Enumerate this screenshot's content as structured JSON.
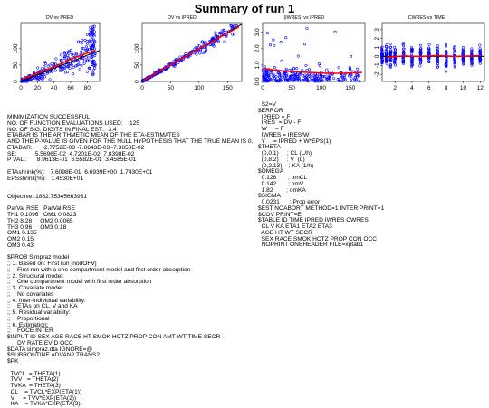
{
  "page_title": "Summary of run 1",
  "chart_data": [
    {
      "type": "scatter",
      "title": "DV vs PRED",
      "xlabel": "",
      "ylabel": "",
      "xlim": [
        0,
        95
      ],
      "ylim": [
        0,
        180
      ],
      "x_ticks": [
        "0",
        "20",
        "40",
        "60",
        "80"
      ],
      "y_ticks": [
        "0",
        "50",
        "100"
      ],
      "reference_line": "identity",
      "smooth_line": {
        "x": [
          2,
          15,
          30,
          45,
          60,
          75,
          90
        ],
        "y": [
          8,
          20,
          35,
          50,
          68,
          82,
          95
        ]
      },
      "points_color": "#0000ff",
      "smooth_color": "#ff0000",
      "x_dense": true
    },
    {
      "type": "scatter",
      "title": "DV vs IPRED",
      "xlabel": "",
      "ylabel": "",
      "xlim": [
        0,
        175
      ],
      "ylim": [
        0,
        180
      ],
      "x_ticks": [
        "0",
        "50",
        "100",
        "150"
      ],
      "y_ticks": [
        "0",
        "50",
        "100"
      ],
      "reference_line": "identity",
      "smooth_line": {
        "x": [
          2,
          30,
          60,
          90,
          120,
          150,
          170
        ],
        "y": [
          3,
          31,
          61,
          90,
          119,
          148,
          167
        ]
      },
      "points_color": "#0000ff",
      "smooth_color": "#ff0000",
      "x_dense": false
    },
    {
      "type": "scatter",
      "title": "|IWRES| vs IPRED",
      "xlabel": "",
      "ylabel": "",
      "xlim": [
        0,
        175
      ],
      "ylim": [
        0,
        3.6
      ],
      "x_ticks": [
        "0",
        "50",
        "100",
        "150"
      ],
      "y_ticks": [
        "0.0",
        "1.0",
        "2.0",
        "3.0"
      ],
      "reference_line": "none",
      "smooth_line": {
        "x": [
          2,
          20,
          50,
          80,
          110,
          140,
          170
        ],
        "y": [
          0.8,
          0.7,
          0.6,
          0.55,
          0.5,
          0.5,
          0.55
        ]
      },
      "points_color": "#0000ff",
      "smooth_color": "#ff0000",
      "x_dense": false
    },
    {
      "type": "scatter",
      "title": "CWRES vs TIME",
      "xlabel": "",
      "ylabel": "",
      "xlim": [
        0.5,
        12.5
      ],
      "ylim": [
        -2.8,
        3.8
      ],
      "x_ticks": [
        "2",
        "4",
        "6",
        "8",
        "10",
        "12"
      ],
      "y_ticks": [
        "-2",
        "-1",
        "0",
        "1",
        "2",
        "3"
      ],
      "reference_line": "zero",
      "smooth_line": {
        "x": [
          1,
          3,
          5,
          7,
          9,
          11,
          12
        ],
        "y": [
          -0.1,
          0.05,
          0.0,
          0.1,
          0.0,
          0.05,
          0.1
        ]
      },
      "points_color": "#0000ff",
      "smooth_color": "#ff0000",
      "x_time_columns": [
        0.5,
        1,
        1.5,
        2,
        3,
        4,
        5,
        6,
        7,
        8,
        9,
        10,
        11,
        12
      ]
    }
  ],
  "left_column": [
    "MINIMIZATION SUCCESSFUL",
    "NO. OF FUNCTION EVALUATIONS USED:    125",
    "NO. OF SIG. DIGITS IN FINAL EST.:  3.4",
    "ETABAR IS THE ARITHMETIC MEAN OF THE ETA-ESTIMATES",
    "AND THE P-VALUE IS GIVEN FOR THE NULL HYPOTHESIS THAT THE TRUE MEAN IS 0.",
    "ETABAR:      -2.7752E-03 -7.8643E-03 -7.3858E-02",
    "SE:           5.5696E-02  4.7201E-02  7.8398E-02",
    "P VAL.:      8.9613E-01  6.5582E-01  3.4585E-01",
    "",
    "ETAshrink(%):   7.6098E-01  6.6939E+00  1.7430E+01",
    "EPSshrink(%):   1.4530E+01",
    "",
    "",
    "Objective: 1882.75345663931",
    "",
    "ParVal RSE   ParVal RSE",
    "TH1 0.1096   OM1 0.0823",
    "TH2 8.28     OM2 0.0065",
    "TH3 0.96     OM3 0.18",
    "OM1 0.135",
    "OM2 0.15",
    "OM3 0.43",
    "",
    "$PROB Simpraz model",
    ";; 1. Based on: First run [nodOFV]",
    ";;    First run with a one compartment model and first order absorption",
    ";; 2. Structural model:",
    ";;    One compartment model with first order absorption",
    ";; 3. Covariate model:",
    ";;    No covariates",
    ";; 4. Inter-individual variability:",
    ";;    ETAs on CL, V and KA",
    ";; 5. Residual variability:",
    ";;    Proportional",
    ";; 6. Estimation:",
    ";;    FOCE INTER",
    "$INPUT ID SEX AGE RACE HT SMOK HCTZ PROP CON AMT WT TIME SECR",
    "      DV RATE EVID OCC",
    "$DATA simpraz.dta IGNORE=@",
    "$SUBROUTINE ADVAN2 TRANS2",
    "$PK",
    "",
    "  TVCL  = THETA(1)",
    "  TVV   = THETA(2)",
    "  TVKA  = THETA(3)",
    "  CL    = TVCL*EXP(ETA(1))",
    "  V     = TVV*EXP(ETA(2))",
    "  KA    = TVKA*EXP(ETA(3))"
  ],
  "right_column": [
    "  S2=V",
    "$ERROR",
    "  IPRED = F",
    "  IRES  = DV - F",
    "  W     = F",
    "  IWRES = IRES/W",
    "  Y     = IPRED + W*EPS(1)",
    "$THETA",
    "  (0,0.1)     ; CL (L/h)",
    "  (0,8.2)     ; V  (L)",
    "  (0,2.13)    ; KA (1/h)",
    "$OMEGA",
    "  0.128       ; omCL",
    "  0.142       ; omV",
    "  1.82        ; omKA",
    "$SIGMA",
    "  0.0231      ; Prop error",
    "$EST NOABORT METHOD=1 INTER PRINT=1",
    "$COV PRINT=E",
    "$TABLE ID TIME IPRED IWRES CWRES",
    "  CL V KA ETA1 ETA2 ETA3",
    "  AGE HT WT SECR",
    "  SEX RACE SMOK HCTZ PROP CON OCC",
    "  NOPRINT ONEHEADER FILE=xptab1"
  ]
}
